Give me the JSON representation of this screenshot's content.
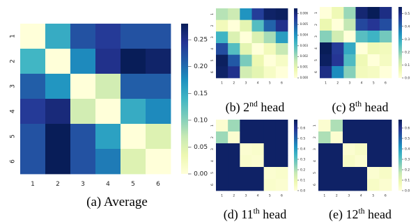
{
  "chart_data": [
    {
      "type": "heatmap",
      "caption": "(a) Average",
      "x_categories": [
        "1",
        "2",
        "3",
        "4",
        "5",
        "6"
      ],
      "y_categories": [
        "1",
        "2",
        "3",
        "4",
        "5",
        "6"
      ],
      "colorbar_ticks": [
        "0.00",
        "0.05",
        "0.10",
        "0.15",
        "0.20",
        "0.25"
      ],
      "vmin": 0.0,
      "vmax": 0.28,
      "colormap": "YlGnBu",
      "values": [
        [
          0.0,
          0.15,
          0.22,
          0.24,
          0.22,
          0.22
        ],
        [
          0.14,
          0.0,
          0.18,
          0.25,
          0.28,
          0.27
        ],
        [
          0.21,
          0.17,
          0.0,
          0.06,
          0.21,
          0.21
        ],
        [
          0.24,
          0.26,
          0.06,
          0.0,
          0.15,
          0.18
        ],
        [
          0.22,
          0.28,
          0.22,
          0.16,
          0.0,
          0.05
        ],
        [
          0.22,
          0.28,
          0.22,
          0.19,
          0.05,
          0.0
        ]
      ]
    },
    {
      "type": "heatmap",
      "caption": "(b) 2nd head",
      "caption_parts": [
        "(b) 2",
        "nd",
        " head"
      ],
      "x_categories": [
        "1",
        "2",
        "3",
        "4",
        "5",
        "6"
      ],
      "y_categories": [
        "1",
        "2",
        "3",
        "4",
        "5",
        "6"
      ],
      "colorbar_ticks": [
        "0.000",
        "0.001",
        "0.002",
        "0.003",
        "0.004",
        "0.005",
        "0.006"
      ],
      "vmin": 0.0,
      "vmax": 0.0065,
      "colormap": "YlGnBu",
      "values": [
        [
          0.0018,
          0.0015,
          0.004,
          0.0055,
          0.0063,
          0.0064
        ],
        [
          0.0006,
          0.0,
          0.001,
          0.003,
          0.0048,
          0.0058
        ],
        [
          0.0033,
          0.0012,
          0.0,
          0.0012,
          0.002,
          0.0038
        ],
        [
          0.0052,
          0.003,
          0.001,
          0.0,
          0.0006,
          0.0016
        ],
        [
          0.0064,
          0.005,
          0.0025,
          0.0008,
          0.0,
          0.0004
        ],
        [
          0.0063,
          0.0058,
          0.0014,
          0.001,
          0.0004,
          0.0
        ]
      ]
    },
    {
      "type": "heatmap",
      "caption": "(c) 8th head",
      "caption_parts": [
        "(c) 8",
        "th",
        " head"
      ],
      "x_categories": [
        "1",
        "2",
        "3",
        "4",
        "5",
        "6"
      ],
      "y_categories": [
        "1",
        "2",
        "3",
        "4",
        "5",
        "6"
      ],
      "colorbar_ticks": [
        "0.0",
        "0.1",
        "0.2",
        "0.3",
        "0.4",
        "0.5"
      ],
      "vmin": 0.0,
      "vmax": 0.55,
      "colormap": "YlGnBu",
      "values": [
        [
          0.0,
          0.06,
          0.18,
          0.52,
          0.55,
          0.5
        ],
        [
          0.07,
          0.0,
          0.14,
          0.45,
          0.48,
          0.44
        ],
        [
          0.2,
          0.12,
          0.0,
          0.25,
          0.28,
          0.22
        ],
        [
          0.55,
          0.47,
          0.3,
          0.0,
          0.06,
          0.05
        ],
        [
          0.54,
          0.48,
          0.26,
          0.06,
          0.0,
          0.04
        ],
        [
          0.5,
          0.35,
          0.2,
          0.05,
          0.04,
          0.0
        ]
      ]
    },
    {
      "type": "heatmap",
      "caption": "(d) 11th head",
      "caption_parts": [
        "(d) 11",
        "th",
        " head"
      ],
      "x_categories": [
        "1",
        "2",
        "3",
        "4",
        "5",
        "6"
      ],
      "y_categories": [
        "1",
        "2",
        "3",
        "4",
        "5",
        "6"
      ],
      "colorbar_ticks": [
        "0.0",
        "0.1",
        "0.2",
        "0.3",
        "0.4",
        "0.5",
        "0.6"
      ],
      "vmin": 0.0,
      "vmax": 0.68,
      "colormap": "YlGnBu",
      "values": [
        [
          0.02,
          0.22,
          0.66,
          0.66,
          0.66,
          0.66
        ],
        [
          0.22,
          0.02,
          0.66,
          0.66,
          0.66,
          0.66
        ],
        [
          0.66,
          0.66,
          0.02,
          0.03,
          0.66,
          0.66
        ],
        [
          0.66,
          0.66,
          0.03,
          0.02,
          0.66,
          0.66
        ],
        [
          0.66,
          0.66,
          0.66,
          0.66,
          0.02,
          0.03
        ],
        [
          0.66,
          0.66,
          0.66,
          0.66,
          0.03,
          0.02
        ]
      ]
    },
    {
      "type": "heatmap",
      "caption": "(e) 12th head",
      "caption_parts": [
        "(e) 12",
        "th",
        " head"
      ],
      "x_categories": [
        "1",
        "2",
        "3",
        "4",
        "5",
        "6"
      ],
      "y_categories": [
        "1",
        "2",
        "3",
        "4",
        "5",
        "6"
      ],
      "colorbar_ticks": [
        "0.0",
        "0.1",
        "0.2",
        "0.3",
        "0.4",
        "0.5",
        "0.6"
      ],
      "vmin": 0.0,
      "vmax": 0.68,
      "colormap": "YlGnBu",
      "values": [
        [
          0.02,
          0.2,
          0.66,
          0.66,
          0.66,
          0.66
        ],
        [
          0.2,
          0.02,
          0.66,
          0.66,
          0.66,
          0.66
        ],
        [
          0.66,
          0.66,
          0.02,
          0.04,
          0.66,
          0.66
        ],
        [
          0.66,
          0.66,
          0.04,
          0.02,
          0.66,
          0.66
        ],
        [
          0.66,
          0.66,
          0.66,
          0.66,
          0.02,
          0.04
        ],
        [
          0.66,
          0.66,
          0.66,
          0.66,
          0.04,
          0.02
        ]
      ]
    }
  ]
}
